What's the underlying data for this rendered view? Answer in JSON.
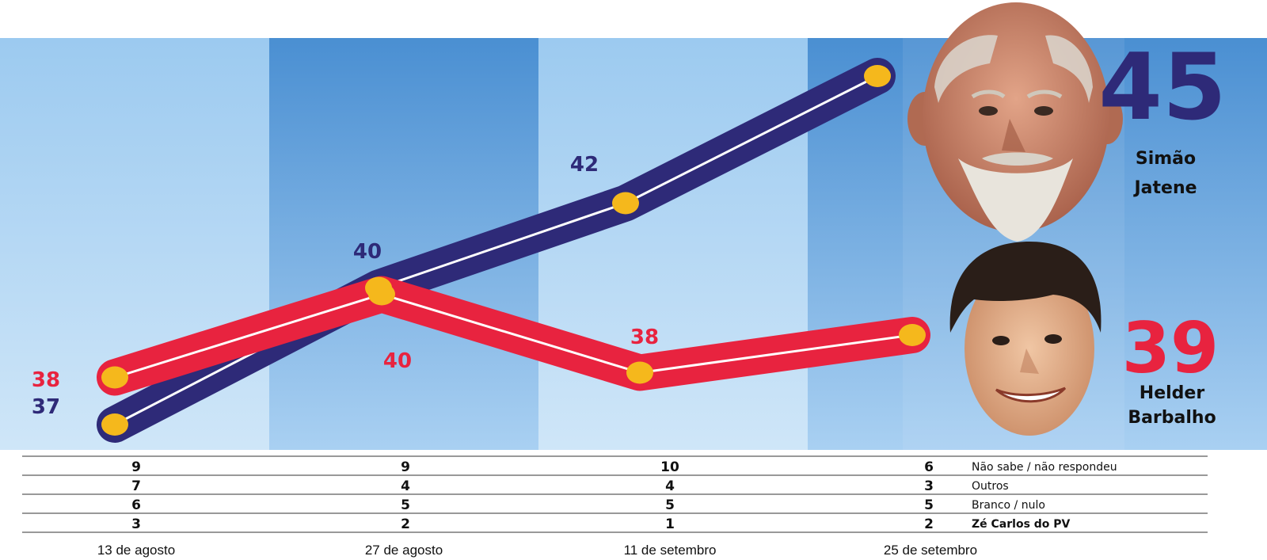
{
  "chart_data": {
    "type": "line",
    "categories": [
      "13 de agosto",
      "27 de agosto",
      "11 de setembro",
      "25 de setembro"
    ],
    "series": [
      {
        "name": "Simão Jatene",
        "values": [
          37,
          40,
          42,
          45
        ],
        "color": "#2e2a78"
      },
      {
        "name": "Helder Barbalho",
        "values": [
          38,
          40,
          38,
          39
        ],
        "color": "#e8233f"
      }
    ],
    "point_labels": {
      "Simão Jatene": [
        "37",
        "40",
        "42",
        ""
      ],
      "Helder Barbalho": [
        "38",
        "40",
        "38",
        ""
      ]
    },
    "final": [
      {
        "value": "45",
        "name_line1": "Simão",
        "name_line2": "Jatene",
        "color": "#2e2a78"
      },
      {
        "value": "39",
        "name_line1": "Helder",
        "name_line2": "Barbalho",
        "color": "#e8233f"
      }
    ],
    "table": {
      "rows": [
        {
          "label": "Não sabe / não respondeu",
          "values": [
            "9",
            "9",
            "10",
            "6"
          ],
          "bold": false
        },
        {
          "label": "Outros",
          "values": [
            "7",
            "4",
            "4",
            "3"
          ],
          "bold": false
        },
        {
          "label": "Branco / nulo",
          "values": [
            "6",
            "5",
            "5",
            "5"
          ],
          "bold": false
        },
        {
          "label": "Zé Carlos do PV",
          "values": [
            "3",
            "2",
            "1",
            "2"
          ],
          "bold": true
        }
      ]
    },
    "marker_color": "#f5b81c",
    "band_colors": [
      "#8fbfe8",
      "#4f94d4"
    ]
  },
  "photos": [
    {
      "name": "Simão Jatene"
    },
    {
      "name": "Helder Barbalho"
    }
  ]
}
